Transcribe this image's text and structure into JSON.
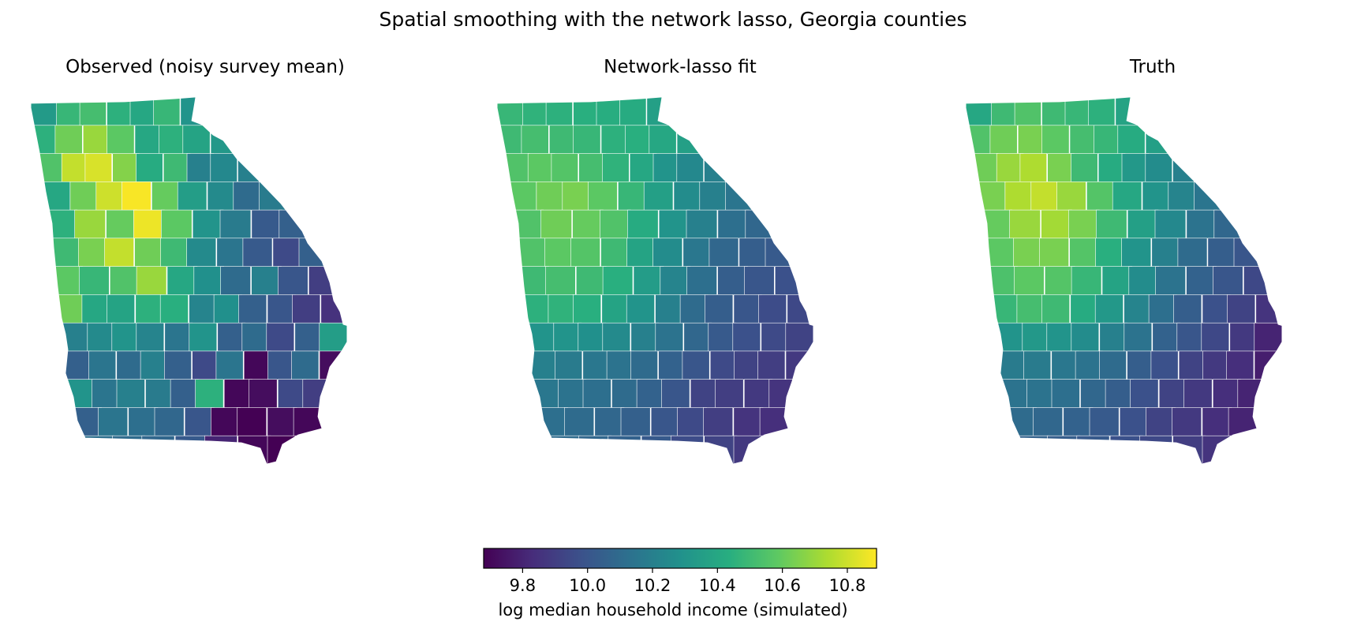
{
  "figure": {
    "title": "Spatial smoothing with the network lasso, Georgia counties"
  },
  "colorbar": {
    "label": "log median household income (simulated)",
    "colormap": "viridis",
    "range": [
      9.68,
      10.89
    ],
    "ticks": [
      "9.8",
      "10.0",
      "10.2",
      "10.4",
      "10.6",
      "10.8"
    ],
    "tick_values": [
      9.8,
      10.0,
      10.2,
      10.4,
      10.6,
      10.8
    ]
  },
  "panels": [
    {
      "title": "Observed (noisy survey mean)"
    },
    {
      "title": "Network-lasso fit"
    },
    {
      "title": "Truth"
    }
  ],
  "map_data": {
    "region": "Georgia counties",
    "rows": [
      {
        "observed": [
          10.33,
          10.48,
          10.52,
          10.45,
          10.4,
          10.48,
          10.3
        ],
        "fit": [
          10.48,
          10.46,
          10.45,
          10.44,
          10.43,
          10.42,
          10.36
        ],
        "truth": [
          10.4,
          10.5,
          10.55,
          10.5,
          10.48,
          10.45,
          10.38
        ]
      },
      {
        "observed": [
          10.45,
          10.62,
          10.7,
          10.58,
          10.4,
          10.45,
          10.38,
          10.32
        ],
        "fit": [
          10.5,
          10.52,
          10.5,
          10.48,
          10.45,
          10.44,
          10.4,
          10.36
        ],
        "truth": [
          10.55,
          10.62,
          10.64,
          10.58,
          10.52,
          10.48,
          10.42,
          10.36
        ]
      },
      {
        "observed": [
          10.55,
          10.78,
          10.82,
          10.66,
          10.42,
          10.5,
          10.2,
          10.24,
          10.2
        ],
        "fit": [
          10.55,
          10.58,
          10.56,
          10.52,
          10.46,
          10.4,
          10.3,
          10.24,
          10.2
        ],
        "truth": [
          10.62,
          10.7,
          10.74,
          10.64,
          10.5,
          10.42,
          10.32,
          10.26,
          10.2
        ]
      },
      {
        "observed": [
          10.4,
          10.62,
          10.8,
          10.88,
          10.6,
          10.35,
          10.25,
          10.1,
          10.18
        ],
        "fit": [
          10.58,
          10.62,
          10.64,
          10.58,
          10.48,
          10.36,
          10.26,
          10.2,
          10.15
        ],
        "truth": [
          10.64,
          10.74,
          10.78,
          10.7,
          10.56,
          10.4,
          10.3,
          10.22,
          10.15
        ]
      },
      {
        "observed": [
          10.45,
          10.7,
          10.6,
          10.86,
          10.58,
          10.3,
          10.18,
          10.02,
          10.05
        ],
        "fit": [
          10.55,
          10.62,
          10.6,
          10.55,
          10.42,
          10.3,
          10.2,
          10.12,
          10.08
        ],
        "truth": [
          10.6,
          10.7,
          10.72,
          10.64,
          10.5,
          10.36,
          10.24,
          10.14,
          10.08
        ]
      },
      {
        "observed": [
          10.5,
          10.64,
          10.78,
          10.62,
          10.5,
          10.25,
          10.15,
          10.02,
          9.95,
          10.05
        ],
        "fit": [
          10.55,
          10.58,
          10.56,
          10.5,
          10.38,
          10.26,
          10.16,
          10.08,
          10.04,
          10.02
        ],
        "truth": [
          10.58,
          10.64,
          10.64,
          10.56,
          10.44,
          10.3,
          10.2,
          10.1,
          10.04,
          10.0
        ]
      },
      {
        "observed": [
          10.58,
          10.48,
          10.55,
          10.7,
          10.4,
          10.28,
          10.1,
          10.2,
          10.0,
          9.9
        ],
        "fit": [
          10.5,
          10.52,
          10.5,
          10.44,
          10.34,
          10.22,
          10.12,
          10.04,
          10.0,
          9.98
        ],
        "truth": [
          10.54,
          10.58,
          10.56,
          10.48,
          10.38,
          10.26,
          10.14,
          10.06,
          10.0,
          9.94
        ]
      },
      {
        "observed": [
          10.62,
          10.4,
          10.38,
          10.45,
          10.44,
          10.22,
          10.28,
          10.05,
          10.0,
          9.9,
          9.85
        ],
        "fit": [
          10.45,
          10.46,
          10.44,
          10.38,
          10.3,
          10.2,
          10.1,
          10.04,
          10.0,
          9.96,
          9.94
        ],
        "truth": [
          10.48,
          10.52,
          10.5,
          10.42,
          10.32,
          10.22,
          10.12,
          10.04,
          9.98,
          9.92,
          9.86
        ]
      },
      {
        "observed": [
          10.2,
          10.25,
          10.3,
          10.22,
          10.15,
          10.3,
          10.05,
          10.1,
          9.95,
          10.05,
          10.35
        ],
        "fit": [
          10.3,
          10.3,
          10.28,
          10.25,
          10.2,
          10.14,
          10.08,
          10.02,
          9.98,
          9.95,
          9.92
        ],
        "truth": [
          10.3,
          10.32,
          10.3,
          10.26,
          10.2,
          10.14,
          10.06,
          10.0,
          9.94,
          9.88,
          9.8
        ]
      },
      {
        "observed": [
          10.05,
          10.15,
          10.1,
          10.2,
          10.05,
          9.95,
          10.15,
          9.7,
          10.0,
          10.1,
          9.72
        ],
        "fit": [
          10.2,
          10.18,
          10.16,
          10.14,
          10.1,
          10.06,
          10.0,
          9.95,
          9.92,
          9.9,
          9.88
        ],
        "truth": [
          10.18,
          10.18,
          10.16,
          10.14,
          10.1,
          10.04,
          9.98,
          9.92,
          9.88,
          9.84,
          9.78
        ]
      },
      {
        "observed": [
          10.3,
          10.15,
          10.2,
          10.18,
          10.05,
          10.45,
          9.7,
          9.72,
          9.95,
          9.9
        ],
        "fit": [
          10.16,
          10.14,
          10.12,
          10.1,
          10.06,
          10.0,
          9.92,
          9.9,
          9.88,
          9.86
        ],
        "truth": [
          10.14,
          10.14,
          10.12,
          10.08,
          10.04,
          9.98,
          9.92,
          9.88,
          9.84,
          9.8
        ]
      },
      {
        "observed": [
          10.05,
          10.15,
          10.12,
          10.08,
          10.0,
          9.7,
          9.68,
          9.72,
          9.7
        ],
        "fit": [
          10.12,
          10.1,
          10.08,
          10.05,
          10.0,
          9.95,
          9.9,
          9.86,
          9.84
        ],
        "truth": [
          10.1,
          10.08,
          10.06,
          10.02,
          9.98,
          9.92,
          9.88,
          9.84,
          9.8
        ]
      },
      {
        "observed": [
          10.12,
          10.1,
          10.08,
          10.02,
          9.8,
          9.7,
          9.68
        ],
        "fit": [
          10.1,
          10.08,
          10.06,
          10.02,
          9.96,
          9.92,
          9.88
        ],
        "truth": [
          10.06,
          10.04,
          10.02,
          9.98,
          9.94,
          9.9,
          9.86
        ]
      }
    ]
  }
}
